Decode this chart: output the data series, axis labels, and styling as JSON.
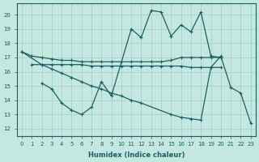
{
  "xlabel": "Humidex (Indice chaleur)",
  "bg_color": "#c2e8e0",
  "grid_color": "#a8ccc8",
  "line_color": "#1a6060",
  "ylim": [
    11.5,
    20.8
  ],
  "yticks": [
    12,
    13,
    14,
    15,
    16,
    17,
    18,
    19,
    20
  ],
  "xlim": [
    -0.5,
    23.5
  ],
  "xticks": [
    0,
    1,
    2,
    3,
    4,
    5,
    6,
    7,
    8,
    9,
    10,
    11,
    12,
    13,
    14,
    15,
    16,
    17,
    18,
    19,
    20,
    21,
    22,
    23
  ],
  "line_a_x": [
    0,
    1,
    2,
    3,
    4,
    5,
    6,
    7,
    8,
    9,
    10,
    11,
    12,
    13,
    14,
    15,
    16,
    17,
    18,
    19,
    20
  ],
  "line_a_y": [
    17.4,
    17.1,
    17.0,
    16.9,
    16.8,
    16.8,
    16.7,
    16.7,
    16.7,
    16.7,
    16.7,
    16.7,
    16.7,
    16.7,
    16.7,
    16.8,
    17.0,
    17.0,
    17.0,
    17.0,
    17.0
  ],
  "line_b_x": [
    1,
    2,
    3,
    4,
    5,
    6,
    7,
    8,
    9,
    10,
    11,
    12,
    13,
    14,
    15,
    16,
    17,
    18,
    19,
    20
  ],
  "line_b_y": [
    16.5,
    16.5,
    16.5,
    16.5,
    16.5,
    16.5,
    16.4,
    16.4,
    16.4,
    16.4,
    16.4,
    16.4,
    16.4,
    16.4,
    16.4,
    16.4,
    16.3,
    16.3,
    16.3,
    16.3
  ],
  "line_c_x": [
    2,
    3,
    4,
    5,
    6,
    7,
    8,
    9,
    11,
    12,
    13,
    14,
    15,
    16,
    17,
    18,
    19,
    20
  ],
  "line_c_y": [
    15.2,
    14.8,
    13.8,
    13.3,
    13.0,
    13.5,
    15.3,
    14.3,
    19.0,
    18.4,
    20.3,
    20.2,
    18.5,
    19.3,
    18.8,
    20.2,
    17.1,
    17.0
  ],
  "line_d_x": [
    0,
    2,
    3,
    4,
    5,
    6,
    7,
    8,
    9,
    10,
    11,
    12,
    15,
    16,
    17,
    18,
    19,
    20,
    21,
    22,
    23
  ],
  "line_d_y": [
    17.4,
    16.5,
    16.2,
    15.9,
    15.6,
    15.3,
    15.0,
    14.8,
    14.5,
    14.3,
    14.0,
    13.8,
    13.0,
    12.8,
    12.7,
    12.6,
    16.3,
    17.1,
    14.9,
    14.5,
    12.4
  ]
}
